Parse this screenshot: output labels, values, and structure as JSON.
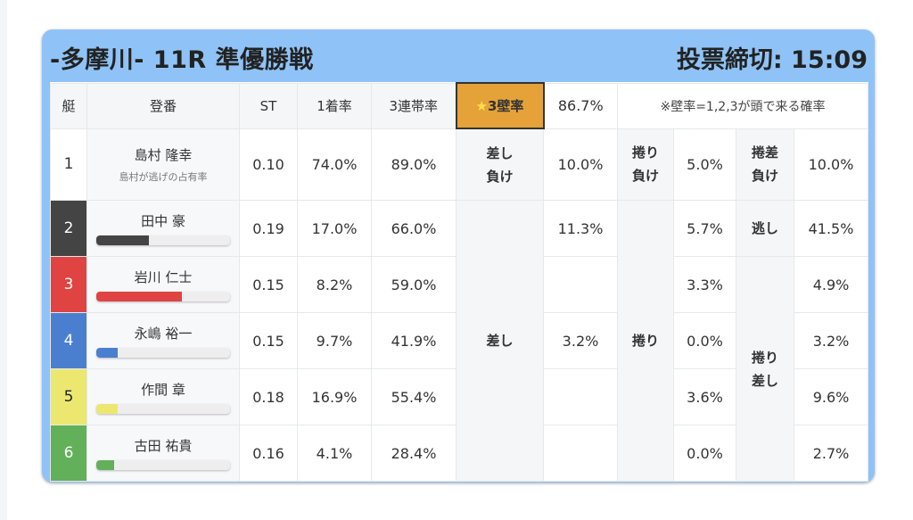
{
  "header": {
    "title": "-多摩川- 11R 準優勝戦",
    "deadline": "投票締切: 15:09"
  },
  "columns": {
    "boat": "艇",
    "reg": "登番",
    "st": "ST",
    "win": "1着率",
    "top3": "3連帯率",
    "wall_star": "★",
    "wall": "3壁率",
    "wall_value": "86.7%",
    "note": "※壁率=1,2,3が頭で来る確率"
  },
  "labels": {
    "sashi_make": [
      "差し",
      "負け"
    ],
    "makuri_make": [
      "捲り",
      "負け"
    ],
    "makurisashi_make": [
      "捲差",
      "負け"
    ],
    "sashi": "差し",
    "makuri": "捲り",
    "nige": "逃し",
    "makurisashi": [
      "捲り",
      "差し"
    ]
  },
  "boats": [
    {
      "num": "1",
      "name": "島村 隆幸",
      "sub": "島村が逃げの占有率",
      "st": "0.10",
      "win": "74.0%",
      "top3": "89.0%",
      "color": "#ffffff",
      "text": "#333333"
    },
    {
      "num": "2",
      "name": "田中 豪",
      "st": "0.19",
      "win": "17.0%",
      "top3": "66.0%",
      "color": "#444444",
      "text": "#ffffff",
      "bar": 0.39
    },
    {
      "num": "3",
      "name": "岩川 仁士",
      "st": "0.15",
      "win": "8.2%",
      "top3": "59.0%",
      "color": "#df4443",
      "text": "#ffffff",
      "bar": 0.64
    },
    {
      "num": "4",
      "name": "永嶋 裕一",
      "st": "0.15",
      "win": "9.7%",
      "top3": "41.9%",
      "color": "#4a7fd0",
      "text": "#ffffff",
      "bar": 0.16
    },
    {
      "num": "5",
      "name": "作間 章",
      "st": "0.18",
      "win": "16.9%",
      "top3": "55.4%",
      "color": "#ece86f",
      "text": "#222222",
      "bar": 0.16
    },
    {
      "num": "6",
      "name": "古田 祐貴",
      "st": "0.16",
      "win": "4.1%",
      "top3": "28.4%",
      "color": "#62b05a",
      "text": "#ffffff",
      "bar": 0.13
    }
  ],
  "sashi_values": [
    "10.0%",
    "11.3%",
    "",
    "3.2%",
    "",
    ""
  ],
  "makuri_values": [
    "5.0%",
    "5.7%",
    "3.3%",
    "0.0%",
    "3.6%",
    "0.0%"
  ],
  "makurisashi_values": [
    "10.0%",
    "41.5%",
    "4.9%",
    "3.2%",
    "9.6%",
    "2.7%"
  ]
}
